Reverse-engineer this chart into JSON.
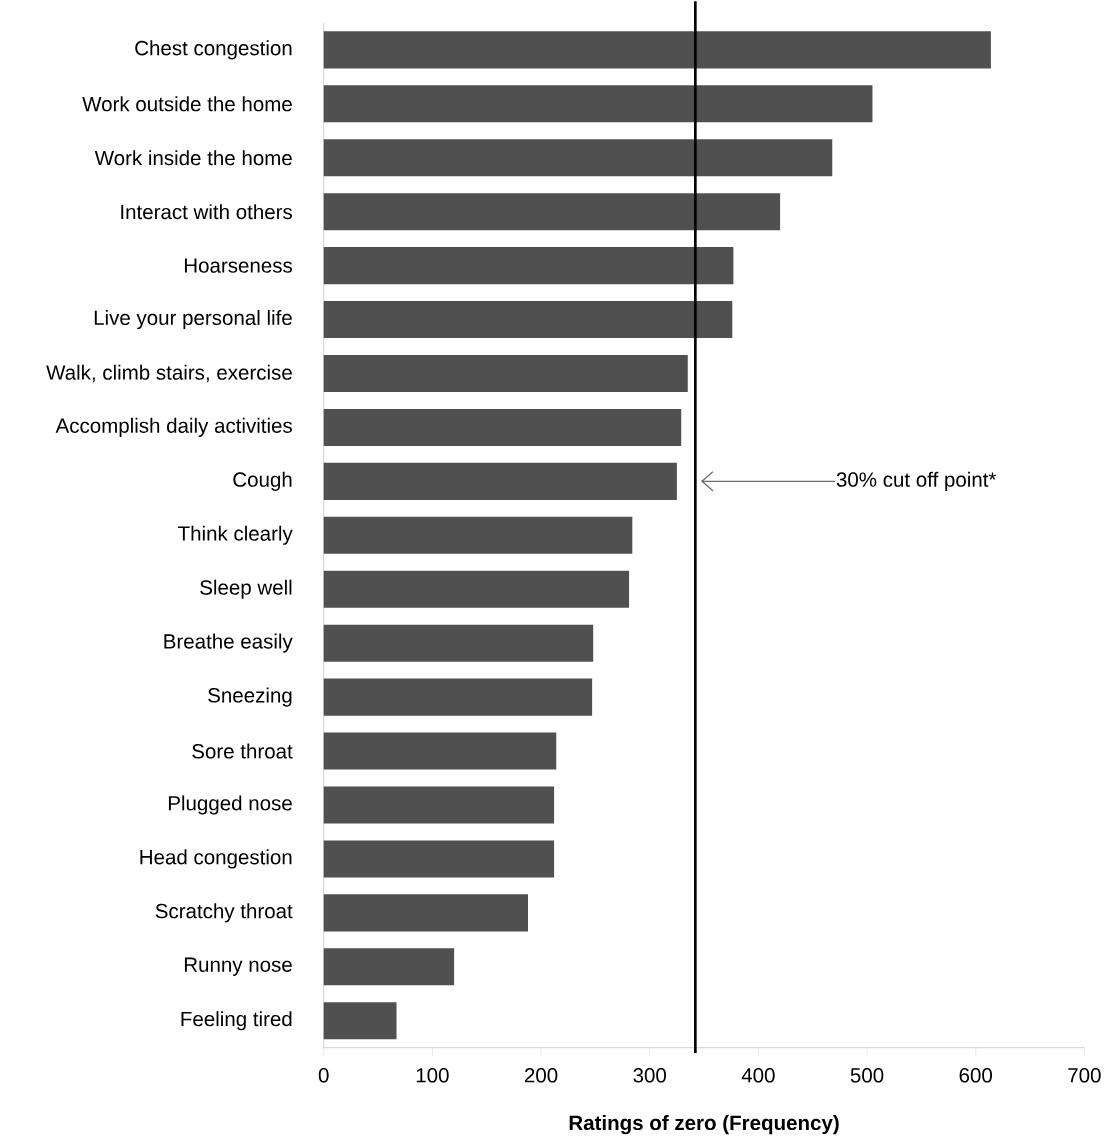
{
  "chart_data": {
    "type": "bar",
    "orientation": "horizontal",
    "xlabel": "Ratings of zero (Frequency)",
    "categories": [
      "Chest congestion",
      "Work outside the home",
      "Work inside the home",
      "Interact with others",
      "Hoarseness",
      "Live your personal life",
      "Walk, climb stairs, exercise",
      "Accomplish daily activities",
      "Cough",
      "Think clearly",
      "Sleep well",
      "Breathe easily",
      "Sneezing",
      "Sore throat",
      "Plugged nose",
      "Head congestion",
      "Scratchy throat",
      "Runny nose",
      "Feeling tired"
    ],
    "values": [
      614,
      505,
      468,
      420,
      377,
      376,
      335,
      329,
      325,
      284,
      281,
      248,
      247,
      214,
      212,
      212,
      188,
      120,
      67
    ],
    "color": "#505050",
    "xlim": [
      0,
      700
    ],
    "xticks": [
      0,
      100,
      200,
      300,
      400,
      500,
      600,
      700
    ],
    "grid": false,
    "ref_lines": [
      {
        "axis": "x",
        "value": 342,
        "label": "30% cut off point*",
        "color": "#000000"
      }
    ]
  }
}
